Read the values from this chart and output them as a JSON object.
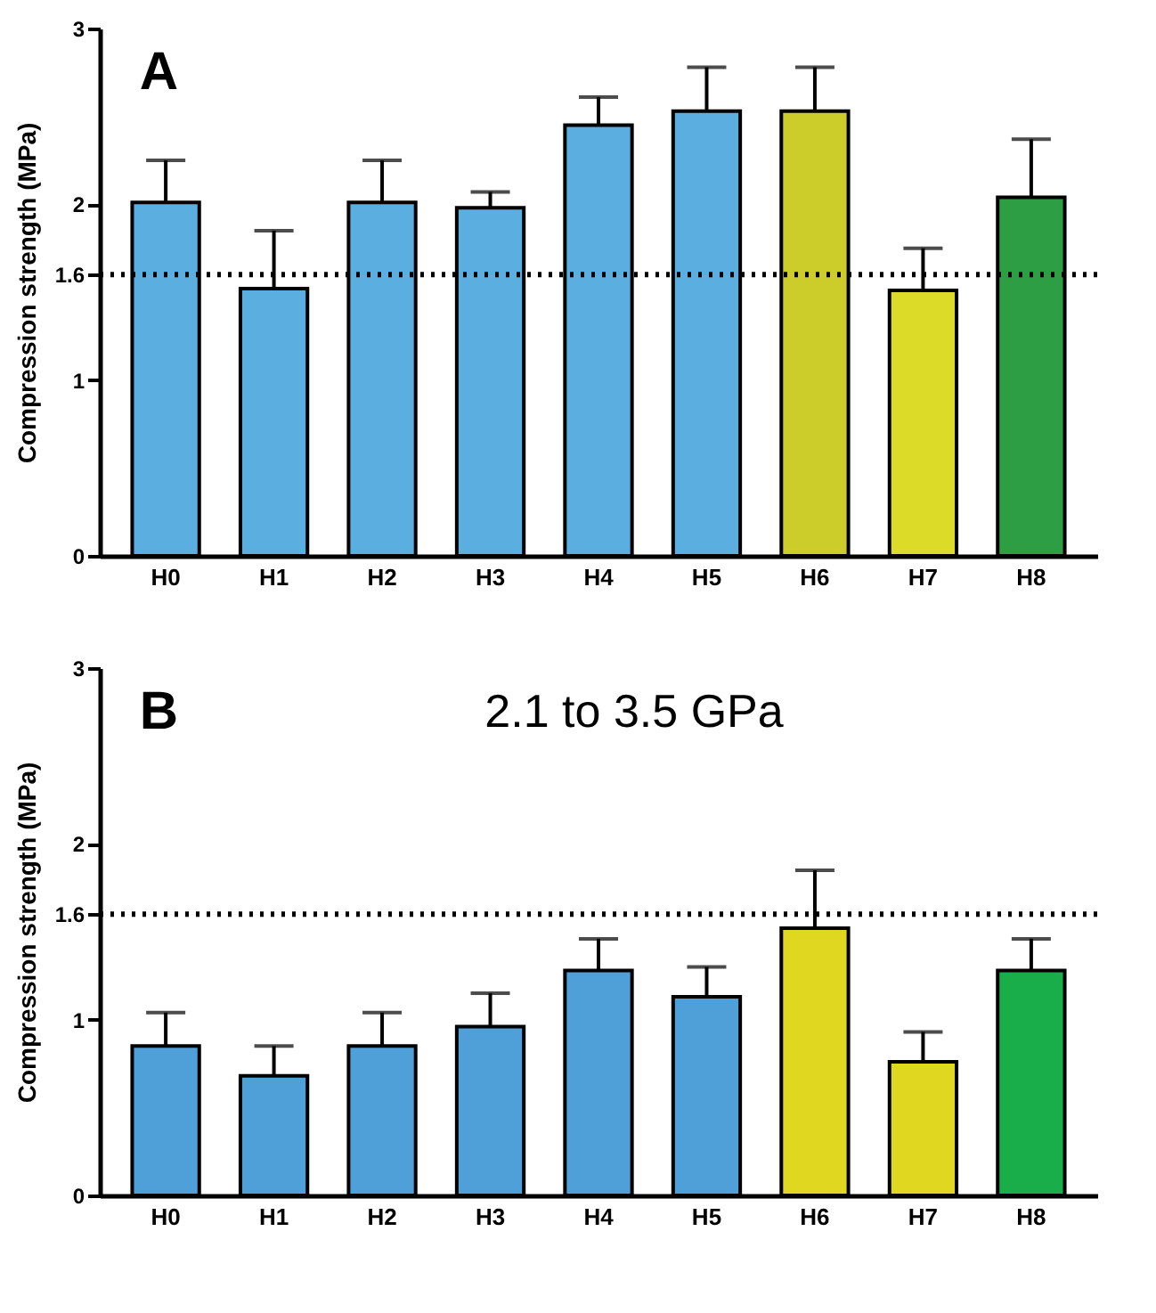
{
  "chart_data": [
    {
      "type": "bar",
      "title": "A",
      "ylabel": "Compression strength (MPa)",
      "categories": [
        "H0",
        "H1",
        "H2",
        "H3",
        "H4",
        "H5",
        "H6",
        "H7",
        "H8"
      ],
      "values": [
        2.01,
        1.52,
        2.01,
        1.98,
        2.45,
        2.53,
        2.53,
        1.51,
        2.04
      ],
      "errors": [
        [
          2.01,
          2.25
        ],
        [
          1.52,
          1.85
        ],
        [
          2.01,
          2.25
        ],
        [
          1.98,
          2.07
        ],
        [
          2.45,
          2.61
        ],
        [
          2.53,
          2.78
        ],
        [
          2.53,
          2.78
        ],
        [
          1.51,
          1.75
        ],
        [
          2.04,
          2.37
        ]
      ],
      "colors": [
        "#5aafe0",
        "#5aafe0",
        "#5aafe0",
        "#5aafe0",
        "#5aafe0",
        "#5aafe0",
        "#cccc2a",
        "#dcdc28",
        "#2e9e44"
      ],
      "ylim": [
        0,
        3
      ],
      "yticks": [
        0,
        1,
        1.6,
        2,
        3
      ],
      "ref_lines": [
        {
          "axis": "y",
          "value": 1.6,
          "color": "#000000",
          "line_style": "dotted"
        }
      ]
    },
    {
      "type": "bar",
      "title": "B",
      "ylabel": "Compression strength (MPa)",
      "annotations": [
        "2.1 to 3.5 GPa"
      ],
      "categories": [
        "H0",
        "H1",
        "H2",
        "H3",
        "H4",
        "H5",
        "H6",
        "H7",
        "H8"
      ],
      "values": [
        0.85,
        0.68,
        0.85,
        0.96,
        1.28,
        1.13,
        1.52,
        0.76,
        1.28
      ],
      "errors": [
        [
          0.85,
          1.04
        ],
        [
          0.68,
          0.85
        ],
        [
          0.85,
          1.04
        ],
        [
          0.96,
          1.15
        ],
        [
          1.28,
          1.46
        ],
        [
          1.13,
          1.3
        ],
        [
          1.52,
          1.85
        ],
        [
          0.76,
          0.93
        ],
        [
          1.28,
          1.46
        ]
      ],
      "colors": [
        "#4f9fd8",
        "#4f9fd8",
        "#4f9fd8",
        "#4f9fd8",
        "#4f9fd8",
        "#4f9fd8",
        "#e0d820",
        "#e0d820",
        "#1aae4a"
      ],
      "ylim": [
        0,
        3
      ],
      "yticks": [
        0,
        1,
        1.6,
        2,
        3
      ],
      "ref_lines": [
        {
          "axis": "y",
          "value": 1.6,
          "color": "#000000",
          "line_style": "dotted"
        }
      ]
    }
  ]
}
